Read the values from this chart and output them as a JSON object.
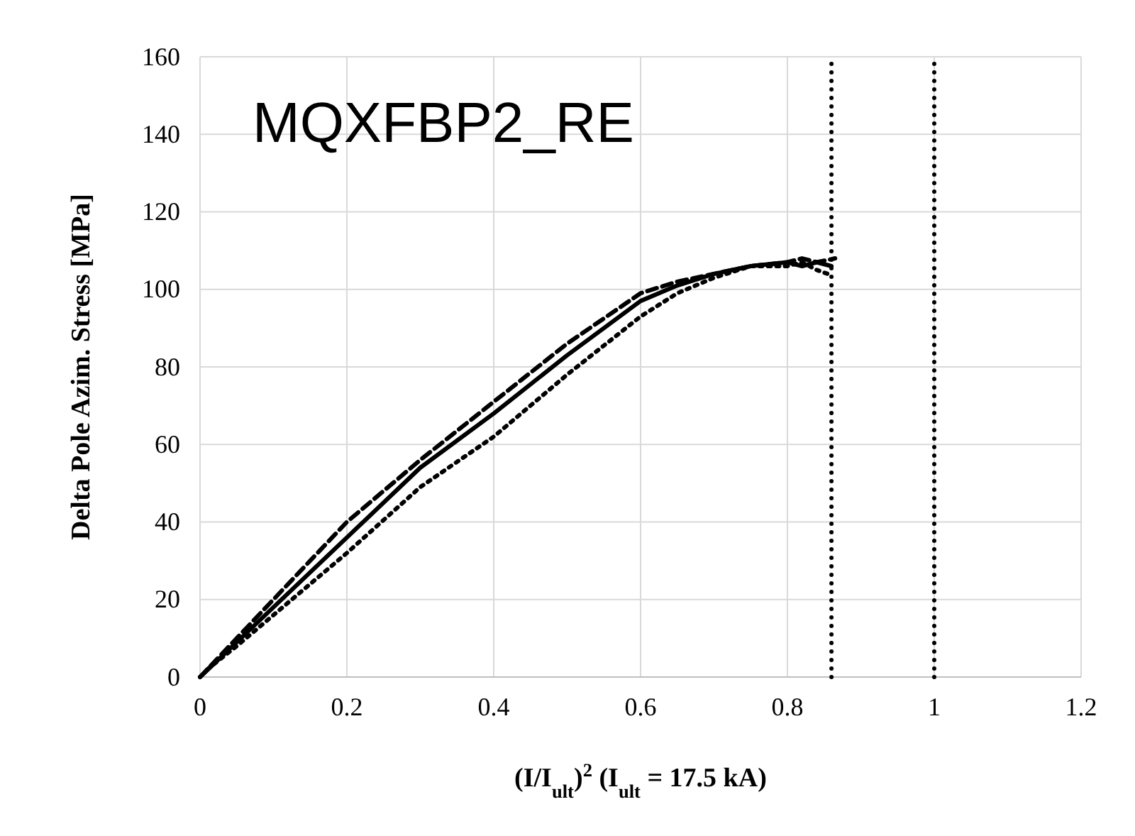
{
  "chart_data": {
    "type": "line",
    "title": "MQXFBP2_RE",
    "xlabel": "(I/I$_{ult}$)$^{2}$ (I$_{ult}$ = 17.5 kA)",
    "ylabel": "Delta Pole Azim. Stress [MPa]",
    "xlim": [
      0,
      1.2
    ],
    "xticks": [
      0,
      0.2,
      0.4,
      0.6,
      0.8,
      1,
      1.2
    ],
    "ylim": [
      0,
      160
    ],
    "yticks": [
      0,
      20,
      40,
      60,
      80,
      100,
      120,
      140,
      160
    ],
    "grid": true,
    "series": [
      {
        "color": "#000000",
        "line_style": "dashed",
        "x": [
          0,
          0.05,
          0.1,
          0.2,
          0.3,
          0.4,
          0.5,
          0.6,
          0.65,
          0.7,
          0.75,
          0.8,
          0.82,
          0.84,
          0.865
        ],
        "values": [
          0,
          10,
          20,
          40,
          56,
          71,
          86,
          99,
          102,
          104,
          106,
          107,
          108,
          107,
          108
        ]
      },
      {
        "color": "#000000",
        "line_style": "solid",
        "x": [
          0,
          0.05,
          0.1,
          0.2,
          0.3,
          0.4,
          0.5,
          0.6,
          0.65,
          0.7,
          0.75,
          0.8,
          0.82,
          0.84,
          0.86
        ],
        "values": [
          0,
          9,
          18,
          36,
          54,
          68,
          83,
          97,
          101,
          104,
          106,
          107,
          106,
          107,
          106
        ]
      },
      {
        "color": "#000000",
        "line_style": "dotted",
        "x": [
          0.01,
          0.05,
          0.1,
          0.2,
          0.3,
          0.4,
          0.5,
          0.6,
          0.65,
          0.7,
          0.75,
          0.8,
          0.82,
          0.84,
          0.855
        ],
        "values": [
          2,
          8,
          16,
          32,
          49,
          62,
          78,
          93,
          99,
          103,
          106,
          106,
          107,
          105,
          104
        ]
      }
    ],
    "ref_lines": [
      {
        "axis": "x",
        "value": 0.86,
        "line_style": "dotted",
        "color": "#000000"
      },
      {
        "axis": "x",
        "value": 1,
        "line_style": "dotted",
        "color": "#000000"
      }
    ]
  }
}
